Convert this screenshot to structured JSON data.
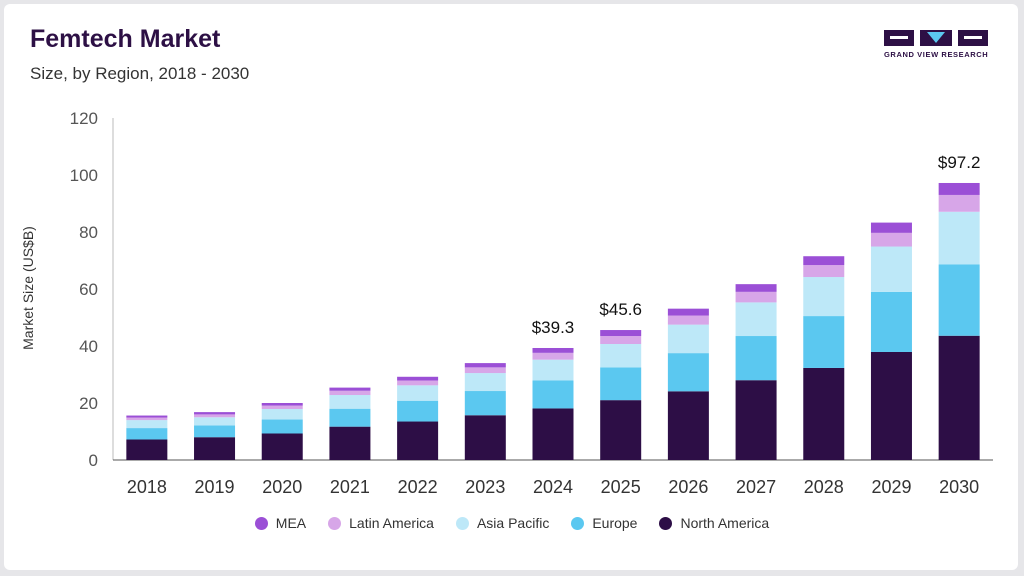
{
  "header": {
    "title": "Femtech Market",
    "subtitle": "Size, by Region, 2018 - 2030",
    "logo_text": "GRAND VIEW RESEARCH"
  },
  "colors": {
    "north_america": "#2d0e46",
    "europe": "#5bc8f0",
    "asia_pacific": "#bde8f8",
    "latin_america": "#d7a6e8",
    "mea": "#9b4fd6",
    "axis": "#555555",
    "logo": "#2d1045"
  },
  "chart_data": {
    "type": "bar",
    "stacked": true,
    "ylabel": "Market Size (US$B)",
    "xlabel": "",
    "ylim": [
      0,
      120
    ],
    "yticks": [
      0,
      20,
      40,
      60,
      80,
      100,
      120
    ],
    "grid": false,
    "legend_position": "bottom",
    "categories": [
      "2018",
      "2019",
      "2020",
      "2021",
      "2022",
      "2023",
      "2024",
      "2025",
      "2026",
      "2027",
      "2028",
      "2029",
      "2030"
    ],
    "series": [
      {
        "name": "North America",
        "color": "#2d0e46",
        "values": [
          7.2,
          8.0,
          9.3,
          11.7,
          13.5,
          15.7,
          18.1,
          21.0,
          24.1,
          28.0,
          32.3,
          37.9,
          43.6
        ]
      },
      {
        "name": "Europe",
        "color": "#5bc8f0",
        "values": [
          4.0,
          4.1,
          4.9,
          6.3,
          7.3,
          8.5,
          9.8,
          11.5,
          13.4,
          15.5,
          18.2,
          21.1,
          25.0
        ]
      },
      {
        "name": "Asia Pacific",
        "color": "#bde8f8",
        "values": [
          2.8,
          2.9,
          3.7,
          4.8,
          5.4,
          6.3,
          7.3,
          8.2,
          10.0,
          11.8,
          13.7,
          15.9,
          18.5
        ]
      },
      {
        "name": "Latin America",
        "color": "#d7a6e8",
        "values": [
          0.9,
          1.0,
          1.2,
          1.5,
          1.7,
          2.0,
          2.4,
          2.8,
          3.2,
          3.7,
          4.2,
          4.8,
          5.9
        ]
      },
      {
        "name": "MEA",
        "color": "#9b4fd6",
        "values": [
          0.7,
          0.8,
          0.9,
          1.1,
          1.3,
          1.5,
          1.7,
          2.1,
          2.4,
          2.7,
          3.1,
          3.6,
          4.2
        ]
      }
    ],
    "annotations": [
      {
        "category": "2024",
        "label": "$39.3"
      },
      {
        "category": "2025",
        "label": "$45.6"
      },
      {
        "category": "2030",
        "label": "$97.2"
      }
    ]
  }
}
